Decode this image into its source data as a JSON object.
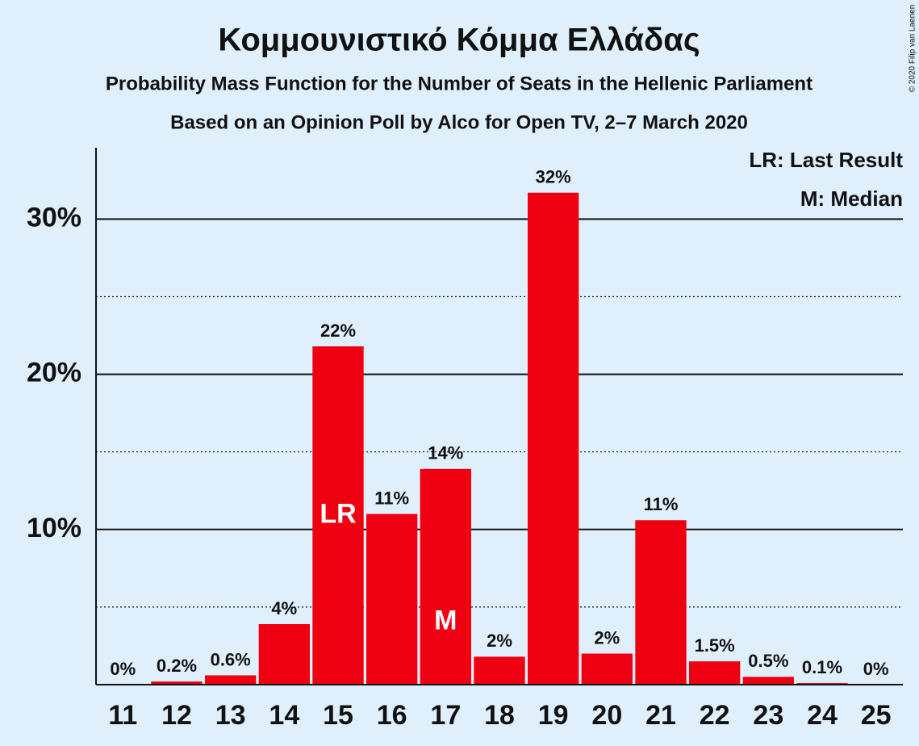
{
  "chart_data": {
    "type": "bar",
    "title": "Κομμουνιστικό Κόμμα Ελλάδας",
    "subtitle": "Probability Mass Function for the Number of Seats in the Hellenic Parliament",
    "subtitle2": "Based on an Opinion Poll by Alco for Open TV, 2–7 March 2020",
    "copyright": "© 2020 Filip van Laenen",
    "categories": [
      "11",
      "12",
      "13",
      "14",
      "15",
      "16",
      "17",
      "18",
      "19",
      "20",
      "21",
      "22",
      "23",
      "24",
      "25"
    ],
    "values": [
      0,
      0.2,
      0.6,
      3.9,
      21.8,
      11.0,
      13.9,
      1.8,
      31.7,
      2.0,
      10.6,
      1.5,
      0.5,
      0.1,
      0
    ],
    "value_labels": [
      "0%",
      "0.2%",
      "0.6%",
      "4%",
      "22%",
      "11%",
      "14%",
      "2%",
      "32%",
      "2%",
      "11%",
      "1.5%",
      "0.5%",
      "0.1%",
      "0%"
    ],
    "color": "#ee0011",
    "ylim": [
      0,
      34.6
    ],
    "yticks": [
      {
        "value": 10,
        "label": "10%"
      },
      {
        "value": 20,
        "label": "20%"
      },
      {
        "value": 30,
        "label": "30%"
      }
    ],
    "minor_yticks": [
      5,
      15,
      25
    ],
    "grid": true,
    "annotations": [
      {
        "text": "LR",
        "category": "15"
      },
      {
        "text": "M",
        "category": "17"
      }
    ],
    "legend": [
      "LR: Last Result",
      "M: Median"
    ],
    "legend_position": "top-right"
  }
}
